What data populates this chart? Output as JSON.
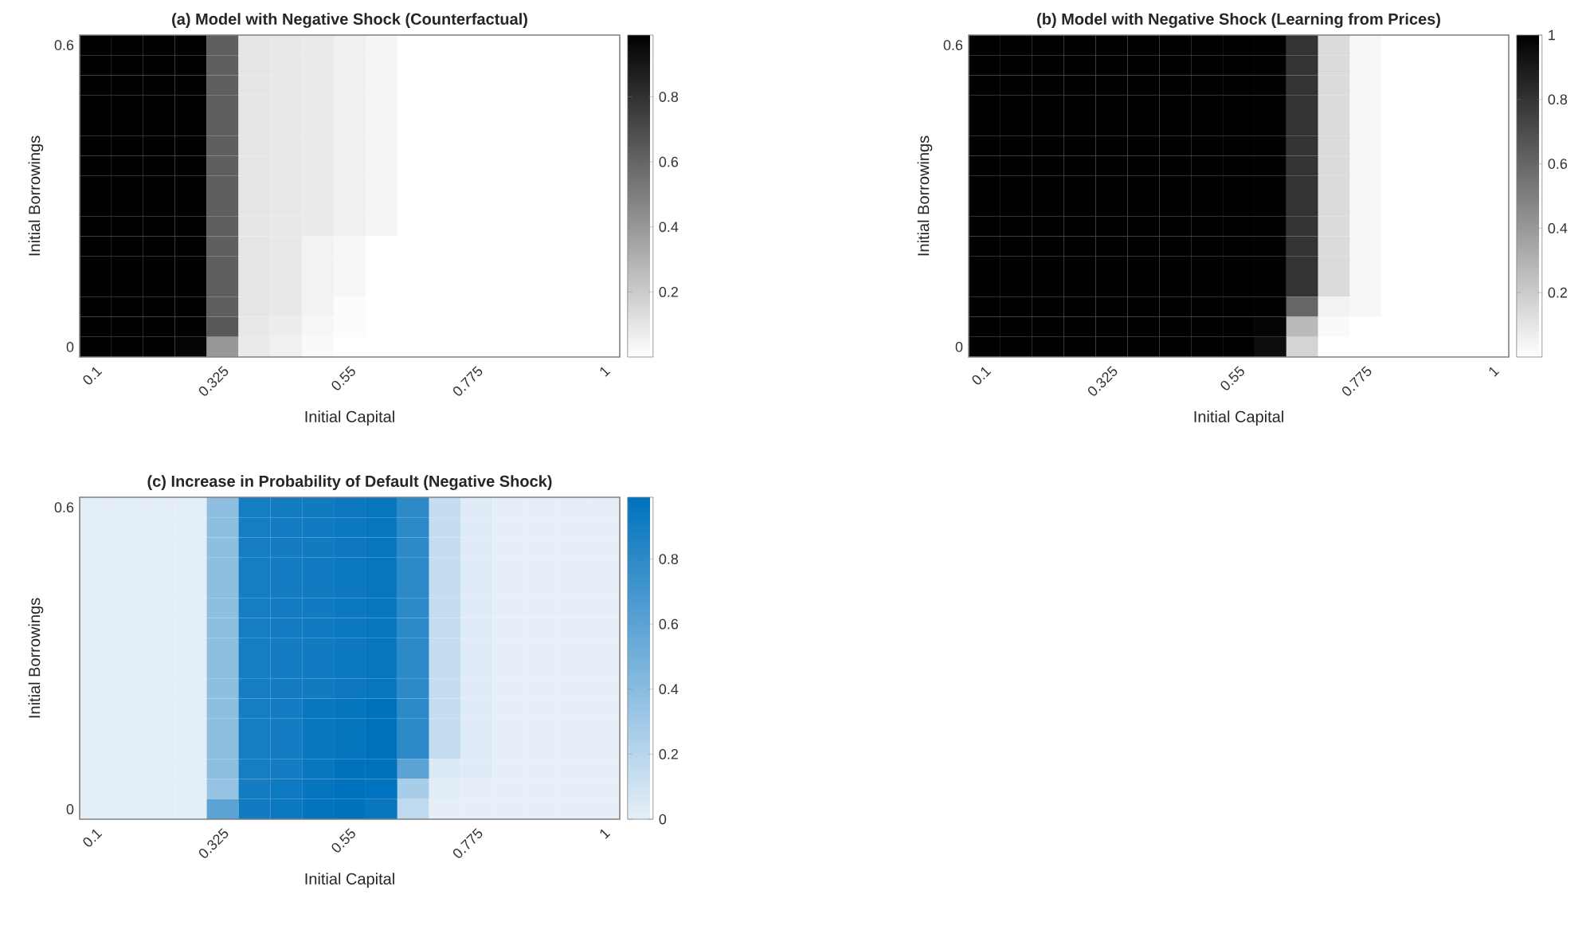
{
  "chart_data": [
    {
      "type": "heatmap",
      "title": "(a) Model with Negative Shock (Counterfactual)",
      "xlabel": "Initial Capital",
      "ylabel": "Initial Borrowings",
      "categories": [
        "0.1",
        null,
        null,
        null,
        "0.325",
        null,
        null,
        null,
        "0.55",
        null,
        null,
        null,
        "0.775",
        null,
        null,
        null,
        "1"
      ],
      "y_categories": [
        "0.6",
        null,
        null,
        null,
        null,
        null,
        null,
        null,
        null,
        null,
        null,
        null,
        null,
        null,
        null,
        "0"
      ],
      "colors": [
        "#ffffff",
        "#000000"
      ],
      "clim": [
        0,
        0.99
      ],
      "cticks": [
        0.2,
        0.4,
        0.6,
        0.8
      ],
      "cells": [
        [
          0.99,
          0.99,
          0.99,
          0.99,
          0.62,
          0.1,
          0.09,
          0.08,
          0.06,
          0.04,
          0,
          0,
          0,
          0,
          0,
          0,
          0
        ],
        [
          0.99,
          0.99,
          0.99,
          0.99,
          0.62,
          0.1,
          0.09,
          0.08,
          0.06,
          0.04,
          0,
          0,
          0,
          0,
          0,
          0,
          0
        ],
        [
          0.99,
          0.99,
          0.99,
          0.99,
          0.62,
          0.1,
          0.09,
          0.08,
          0.06,
          0.04,
          0,
          0,
          0,
          0,
          0,
          0,
          0
        ],
        [
          0.99,
          0.99,
          0.99,
          0.99,
          0.62,
          0.1,
          0.09,
          0.08,
          0.06,
          0.04,
          0,
          0,
          0,
          0,
          0,
          0,
          0
        ],
        [
          0.99,
          0.99,
          0.99,
          0.99,
          0.62,
          0.1,
          0.09,
          0.08,
          0.06,
          0.04,
          0,
          0,
          0,
          0,
          0,
          0,
          0
        ],
        [
          0.99,
          0.99,
          0.99,
          0.99,
          0.62,
          0.1,
          0.09,
          0.08,
          0.06,
          0.04,
          0,
          0,
          0,
          0,
          0,
          0,
          0
        ],
        [
          0.99,
          0.99,
          0.99,
          0.99,
          0.62,
          0.1,
          0.09,
          0.08,
          0.06,
          0.04,
          0,
          0,
          0,
          0,
          0,
          0,
          0
        ],
        [
          0.99,
          0.99,
          0.99,
          0.99,
          0.62,
          0.1,
          0.09,
          0.08,
          0.06,
          0.04,
          0,
          0,
          0,
          0,
          0,
          0,
          0
        ],
        [
          0.99,
          0.99,
          0.99,
          0.99,
          0.62,
          0.1,
          0.09,
          0.08,
          0.06,
          0.04,
          0,
          0,
          0,
          0,
          0,
          0,
          0
        ],
        [
          0.99,
          0.99,
          0.99,
          0.99,
          0.62,
          0.1,
          0.09,
          0.08,
          0.06,
          0.04,
          0,
          0,
          0,
          0,
          0,
          0,
          0
        ],
        [
          0.99,
          0.99,
          0.99,
          0.99,
          0.62,
          0.1,
          0.09,
          0.05,
          0.03,
          0,
          0,
          0,
          0,
          0,
          0,
          0,
          0
        ],
        [
          0.99,
          0.99,
          0.99,
          0.99,
          0.62,
          0.1,
          0.09,
          0.05,
          0.03,
          0,
          0,
          0,
          0,
          0,
          0,
          0,
          0
        ],
        [
          0.99,
          0.99,
          0.99,
          0.99,
          0.62,
          0.1,
          0.09,
          0.05,
          0.03,
          0,
          0,
          0,
          0,
          0,
          0,
          0,
          0
        ],
        [
          0.99,
          0.99,
          0.99,
          0.99,
          0.62,
          0.1,
          0.09,
          0.05,
          0.01,
          0,
          0,
          0,
          0,
          0,
          0,
          0,
          0
        ],
        [
          0.99,
          0.99,
          0.99,
          0.99,
          0.65,
          0.09,
          0.07,
          0.03,
          0.01,
          0,
          0,
          0,
          0,
          0,
          0,
          0,
          0
        ],
        [
          0.99,
          0.99,
          0.99,
          0.97,
          0.4,
          0.08,
          0.06,
          0.02,
          0,
          0,
          0,
          0,
          0,
          0,
          0,
          0,
          0
        ]
      ]
    },
    {
      "type": "heatmap",
      "title": "(b) Model with Negative Shock (Learning from Prices)",
      "xlabel": "Initial Capital",
      "ylabel": "Initial Borrowings",
      "categories": [
        "0.1",
        null,
        null,
        null,
        "0.325",
        null,
        null,
        null,
        "0.55",
        null,
        null,
        null,
        "0.775",
        null,
        null,
        null,
        "1"
      ],
      "y_categories": [
        "0.6",
        null,
        null,
        null,
        null,
        null,
        null,
        null,
        null,
        null,
        null,
        null,
        null,
        null,
        null,
        "0"
      ],
      "colors": [
        "#ffffff",
        "#000000"
      ],
      "clim": [
        0,
        1
      ],
      "cticks": [
        0.2,
        0.4,
        0.6,
        0.8,
        1
      ],
      "cells": [
        [
          1,
          1,
          1,
          1,
          1,
          1,
          1,
          1,
          1,
          1,
          0.8,
          0.14,
          0.03,
          0,
          0,
          0,
          0
        ],
        [
          1,
          1,
          1,
          1,
          1,
          1,
          1,
          1,
          1,
          1,
          0.8,
          0.14,
          0.03,
          0,
          0,
          0,
          0
        ],
        [
          1,
          1,
          1,
          1,
          1,
          1,
          1,
          1,
          1,
          1,
          0.8,
          0.14,
          0.03,
          0,
          0,
          0,
          0
        ],
        [
          1,
          1,
          1,
          1,
          1,
          1,
          1,
          1,
          1,
          1,
          0.8,
          0.14,
          0.03,
          0,
          0,
          0,
          0
        ],
        [
          1,
          1,
          1,
          1,
          1,
          1,
          1,
          1,
          1,
          1,
          0.8,
          0.14,
          0.03,
          0,
          0,
          0,
          0
        ],
        [
          1,
          1,
          1,
          1,
          1,
          1,
          1,
          1,
          1,
          1,
          0.8,
          0.14,
          0.03,
          0,
          0,
          0,
          0
        ],
        [
          1,
          1,
          1,
          1,
          1,
          1,
          1,
          1,
          1,
          1,
          0.8,
          0.14,
          0.03,
          0,
          0,
          0,
          0
        ],
        [
          1,
          1,
          1,
          1,
          1,
          1,
          1,
          1,
          1,
          1,
          0.8,
          0.14,
          0.03,
          0,
          0,
          0,
          0
        ],
        [
          1,
          1,
          1,
          1,
          1,
          1,
          1,
          1,
          1,
          1,
          0.8,
          0.14,
          0.03,
          0,
          0,
          0,
          0
        ],
        [
          1,
          1,
          1,
          1,
          1,
          1,
          1,
          1,
          1,
          1,
          0.8,
          0.14,
          0.03,
          0,
          0,
          0,
          0
        ],
        [
          1,
          1,
          1,
          1,
          1,
          1,
          1,
          1,
          1,
          1,
          0.8,
          0.14,
          0.03,
          0,
          0,
          0,
          0
        ],
        [
          1,
          1,
          1,
          1,
          1,
          1,
          1,
          1,
          1,
          1,
          0.8,
          0.14,
          0.03,
          0,
          0,
          0,
          0
        ],
        [
          1,
          1,
          1,
          1,
          1,
          1,
          1,
          1,
          1,
          1,
          0.8,
          0.14,
          0.03,
          0,
          0,
          0,
          0
        ],
        [
          1,
          1,
          1,
          1,
          1,
          1,
          1,
          1,
          1,
          1,
          0.6,
          0.05,
          0.03,
          0,
          0,
          0,
          0
        ],
        [
          1,
          1,
          1,
          1,
          1,
          1,
          1,
          1,
          1,
          0.98,
          0.27,
          0.02,
          0,
          0,
          0,
          0,
          0
        ],
        [
          1,
          1,
          1,
          1,
          1,
          1,
          1,
          1,
          1,
          0.95,
          0.17,
          0,
          0,
          0,
          0,
          0,
          0
        ]
      ]
    },
    {
      "type": "heatmap",
      "title": "(c) Increase in Probability of Default (Negative Shock)",
      "xlabel": "Initial Capital",
      "ylabel": "Initial Borrowings",
      "categories": [
        "0.1",
        null,
        null,
        null,
        "0.325",
        null,
        null,
        null,
        "0.55",
        null,
        null,
        null,
        "0.775",
        null,
        null,
        null,
        "1"
      ],
      "y_categories": [
        "0.6",
        null,
        null,
        null,
        null,
        null,
        null,
        null,
        null,
        null,
        null,
        null,
        null,
        null,
        null,
        "0"
      ],
      "colors": [
        "#e6eff8",
        "#0072bd"
      ],
      "clim": [
        0,
        0.99
      ],
      "cticks": [
        0,
        0.2,
        0.4,
        0.6,
        0.8
      ],
      "cells": [
        [
          0.01,
          0.01,
          0.01,
          0.01,
          0.38,
          0.9,
          0.91,
          0.92,
          0.94,
          0.96,
          0.8,
          0.14,
          0.03,
          0,
          0,
          0,
          0
        ],
        [
          0.01,
          0.01,
          0.01,
          0.01,
          0.38,
          0.9,
          0.91,
          0.92,
          0.94,
          0.96,
          0.8,
          0.14,
          0.03,
          0,
          0,
          0,
          0
        ],
        [
          0.01,
          0.01,
          0.01,
          0.01,
          0.38,
          0.9,
          0.91,
          0.92,
          0.94,
          0.96,
          0.8,
          0.14,
          0.03,
          0,
          0,
          0,
          0
        ],
        [
          0.01,
          0.01,
          0.01,
          0.01,
          0.38,
          0.9,
          0.91,
          0.92,
          0.94,
          0.96,
          0.8,
          0.14,
          0.03,
          0,
          0,
          0,
          0
        ],
        [
          0.01,
          0.01,
          0.01,
          0.01,
          0.38,
          0.9,
          0.91,
          0.92,
          0.94,
          0.96,
          0.8,
          0.14,
          0.03,
          0,
          0,
          0,
          0
        ],
        [
          0.01,
          0.01,
          0.01,
          0.01,
          0.38,
          0.9,
          0.91,
          0.92,
          0.94,
          0.96,
          0.8,
          0.14,
          0.03,
          0,
          0,
          0,
          0
        ],
        [
          0.01,
          0.01,
          0.01,
          0.01,
          0.38,
          0.9,
          0.91,
          0.92,
          0.94,
          0.96,
          0.8,
          0.14,
          0.03,
          0,
          0,
          0,
          0
        ],
        [
          0.01,
          0.01,
          0.01,
          0.01,
          0.38,
          0.9,
          0.91,
          0.92,
          0.94,
          0.96,
          0.8,
          0.14,
          0.03,
          0,
          0,
          0,
          0
        ],
        [
          0.01,
          0.01,
          0.01,
          0.01,
          0.38,
          0.9,
          0.91,
          0.92,
          0.94,
          0.96,
          0.8,
          0.14,
          0.03,
          0,
          0,
          0,
          0
        ],
        [
          0.01,
          0.01,
          0.01,
          0.01,
          0.38,
          0.9,
          0.91,
          0.92,
          0.94,
          0.96,
          0.8,
          0.14,
          0.03,
          0,
          0,
          0,
          0
        ],
        [
          0.01,
          0.01,
          0.01,
          0.01,
          0.38,
          0.9,
          0.91,
          0.95,
          0.97,
          0.99,
          0.8,
          0.14,
          0.03,
          0,
          0,
          0,
          0
        ],
        [
          0.01,
          0.01,
          0.01,
          0.01,
          0.38,
          0.9,
          0.91,
          0.95,
          0.97,
          0.99,
          0.8,
          0.14,
          0.03,
          0,
          0,
          0,
          0
        ],
        [
          0.01,
          0.01,
          0.01,
          0.01,
          0.38,
          0.9,
          0.91,
          0.95,
          0.97,
          0.99,
          0.8,
          0.14,
          0.03,
          0,
          0,
          0,
          0
        ],
        [
          0.01,
          0.01,
          0.01,
          0.01,
          0.38,
          0.9,
          0.91,
          0.95,
          0.99,
          0.99,
          0.6,
          0.05,
          0.03,
          0,
          0,
          0,
          0
        ],
        [
          0.01,
          0.01,
          0.01,
          0.01,
          0.35,
          0.91,
          0.93,
          0.97,
          0.99,
          0.98,
          0.27,
          0.02,
          0,
          0,
          0,
          0,
          0
        ],
        [
          0.01,
          0.01,
          0.01,
          0.01,
          0.6,
          0.92,
          0.94,
          0.98,
          0.99,
          0.95,
          0.17,
          0,
          0,
          0,
          0,
          0,
          0
        ]
      ]
    }
  ]
}
